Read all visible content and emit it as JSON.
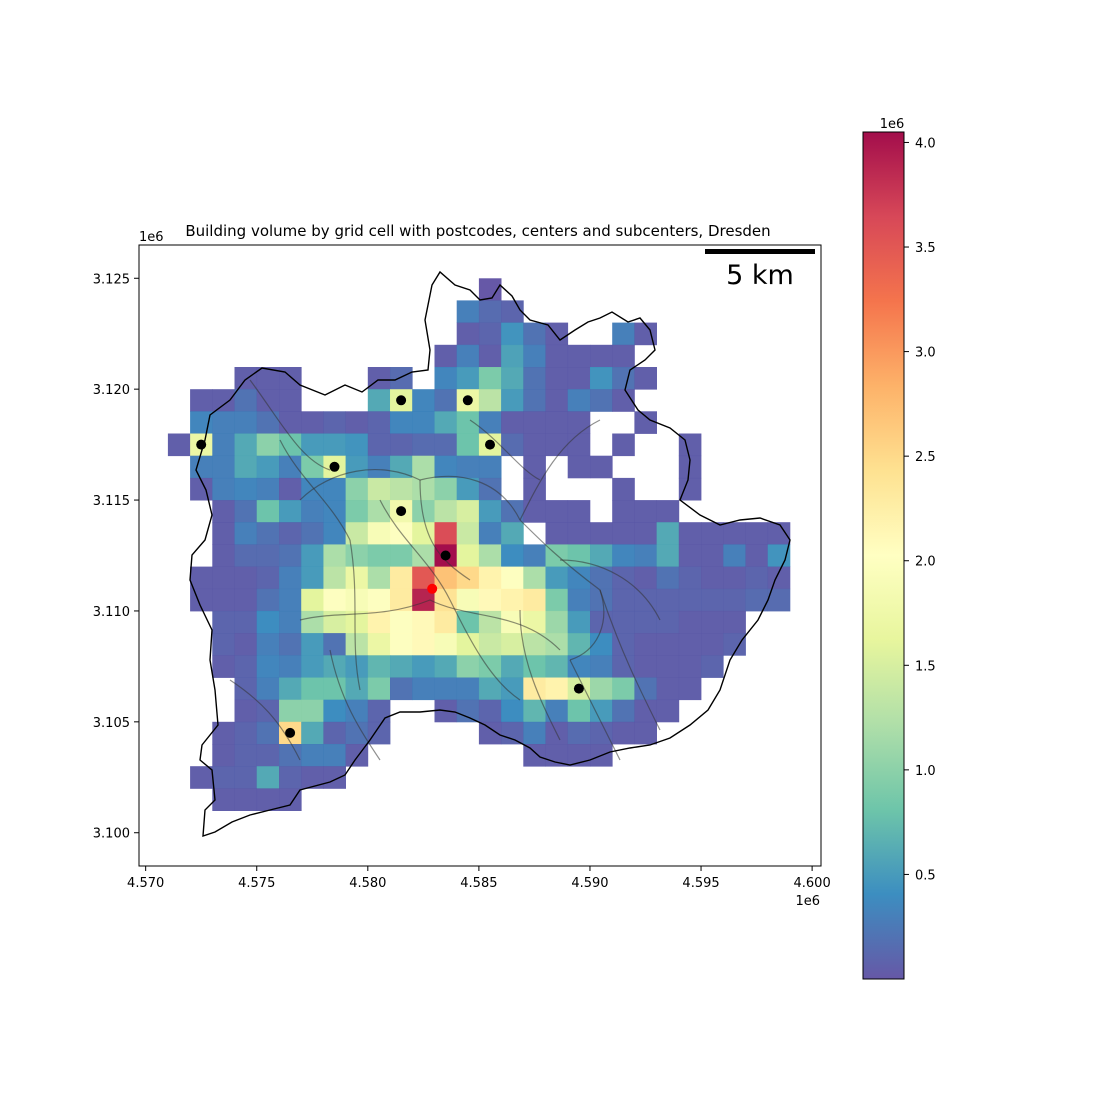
{
  "chart_data": {
    "type": "heatmap",
    "title": "Building volume by grid cell with postcodes, centers and subcenters, Dresden",
    "x_axis": {
      "range": [
        4.5697,
        4.6004
      ],
      "ticks": [
        4.57,
        4.575,
        4.58,
        4.585,
        4.59,
        4.595,
        4.6
      ],
      "tick_labels": [
        "4.570",
        "4.575",
        "4.580",
        "4.585",
        "4.590",
        "4.595",
        "4.600"
      ],
      "offset_label": "1e6"
    },
    "y_axis": {
      "range": [
        3.0985,
        3.1265
      ],
      "ticks": [
        3.1,
        3.105,
        3.11,
        3.115,
        3.12,
        3.125
      ],
      "tick_labels": [
        "3.100",
        "3.105",
        "3.110",
        "3.115",
        "3.120",
        "3.125"
      ],
      "offset_label": "1e6"
    },
    "colorbar": {
      "colormap": "Spectral_r",
      "range": [
        0,
        4.05
      ],
      "ticks": [
        0.5,
        1.0,
        1.5,
        2.0,
        2.5,
        3.0,
        3.5,
        4.0
      ],
      "tick_labels": [
        "0.5",
        "1.0",
        "1.5",
        "2.0",
        "2.5",
        "3.0",
        "3.5",
        "4.0"
      ],
      "offset_label": "1e6"
    },
    "grid": {
      "cell_size": 1000,
      "x_origin": 4571,
      "y_top": 3125,
      "scale": 0.1,
      "rows": [
        "......................0...........",
        ".............................................",
        ".....................222000...",
        "....................0026600....0.",
        "...................02210000....00.",
        "...................0000000...000000..",
        "......000.....0035460000000",
        ".0000...000.23215101000",
        "....111...0000.00......0..",
        "0022111100.00001411..0000..0.0",
        "..00.0221100.0054.0000.0..00",
        "..0312001112200114101.0.0...0...0",
        ".00000.0000",
        "....00....00....0",
        "....0000...0...0..0111...000000...........0....",
        "....00222200....00000000.0000",
        "..000....000"
      ],
      "note": "placeholder"
    },
    "centers": [
      {
        "x": 4.5829,
        "y": 3.111,
        "type": "center",
        "color": "#ff0000"
      },
      {
        "x": 4.5725,
        "y": 3.1175,
        "type": "subcenter",
        "color": "#000000"
      },
      {
        "x": 4.5815,
        "y": 3.1195,
        "type": "subcenter",
        "color": "#000000"
      },
      {
        "x": 4.5845,
        "y": 3.1195,
        "type": "subcenter",
        "color": "#000000"
      },
      {
        "x": 4.5855,
        "y": 3.1175,
        "type": "subcenter",
        "color": "#000000"
      },
      {
        "x": 4.5785,
        "y": 3.1165,
        "type": "subcenter",
        "color": "#000000"
      },
      {
        "x": 4.5815,
        "y": 3.1145,
        "type": "subcenter",
        "color": "#000000"
      },
      {
        "x": 4.5835,
        "y": 3.1125,
        "type": "subcenter",
        "color": "#000000"
      },
      {
        "x": 4.5895,
        "y": 3.1065,
        "type": "subcenter",
        "color": "#000000"
      },
      {
        "x": 4.5765,
        "y": 3.1045,
        "type": "subcenter",
        "color": "#000000"
      }
    ],
    "scalebar": {
      "label": "5 km",
      "length_m": 5000,
      "placement": "top-right"
    },
    "legend": "none"
  }
}
